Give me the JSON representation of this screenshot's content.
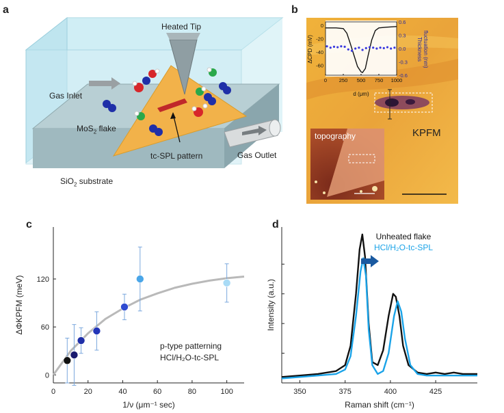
{
  "panels": {
    "a": {
      "letter": "a",
      "heated_tip": "Heated Tip",
      "gas_inlet": "Gas Inlet",
      "mos2_flake": "MoS",
      "mos2_sub": "2",
      "mos2_suffix": " flake",
      "tc_spl_pattern": "tc-SPL pattern",
      "gas_outlet": "Gas Outlet",
      "sio2": "SiO",
      "sio2_sub": "2",
      "sio2_suffix": " substrate"
    },
    "b": {
      "letter": "b",
      "kpfm": "KPFM",
      "topography": "topography",
      "inset_ylabel": "ΔCPD (mV)",
      "inset_y2label_1": "Thickness",
      "inset_y2label_2": "fluctuation (nm)",
      "inset_xlabel": "d (μm)",
      "inset_xticks": [
        "0",
        "250",
        "500",
        "750",
        "1000"
      ],
      "inset_yticks": [
        "0",
        "-20",
        "-40",
        "-60"
      ],
      "inset_y2ticks": [
        "0.6",
        "0.3",
        "0.0",
        "-0.3",
        "-0.6"
      ]
    },
    "c": {
      "letter": "c"
    },
    "d": {
      "letter": "d"
    }
  },
  "chart_data": [
    {
      "panel": "b-inset",
      "type": "line",
      "xlabel": "d (μm)",
      "ylabel": "ΔCPD (mV)",
      "y2label": "Thickness fluctuation (nm)",
      "xlim": [
        0,
        1000
      ],
      "ylim": [
        -75,
        5
      ],
      "y2lim": [
        -0.6,
        0.6
      ],
      "series": [
        {
          "name": "ΔCPD",
          "x": [
            0,
            150,
            250,
            300,
            350,
            400,
            450,
            500,
            520,
            560,
            600,
            650,
            700,
            750,
            850,
            1000
          ],
          "y": [
            -4,
            -4,
            -5,
            -12,
            -28,
            -45,
            -62,
            -70,
            -71,
            -65,
            -45,
            -22,
            -8,
            -4,
            -3,
            -2
          ]
        },
        {
          "name": "Thickness fluctuation",
          "axis": "y2",
          "x": [
            20,
            70,
            120,
            170,
            220,
            270,
            320,
            370,
            420,
            470,
            520,
            570,
            620,
            670,
            720,
            770,
            820,
            870,
            920,
            970
          ],
          "y": [
            0.05,
            0.02,
            0.04,
            0.03,
            0.05,
            0.04,
            -0.02,
            -0.05,
            0.0,
            0.02,
            -0.03,
            0.01,
            0.03,
            0.02,
            0.0,
            0.02,
            0.01,
            0.03,
            0.0,
            0.02
          ]
        }
      ]
    },
    {
      "panel": "c",
      "type": "scatter",
      "xlabel": "1/ν (μm⁻¹ sec)",
      "ylabel": "ΔΦKPFM (meV)",
      "xlim": [
        0,
        110
      ],
      "ylim": [
        -10,
        185
      ],
      "xticks": [
        0,
        20,
        40,
        60,
        80,
        100
      ],
      "yticks": [
        0,
        60,
        120
      ],
      "annotation_1": "p-type patterning",
      "annotation_2": "HCl/H₂O-tc-SPL",
      "points": [
        {
          "x": 8,
          "y": 18,
          "err": 28,
          "color": "#111111"
        },
        {
          "x": 12,
          "y": 25,
          "err": 38,
          "color": "#1a1a6e"
        },
        {
          "x": 16,
          "y": 43,
          "err": 16,
          "color": "#1f2fa8"
        },
        {
          "x": 25,
          "y": 55,
          "err": 24,
          "color": "#2336b8"
        },
        {
          "x": 41,
          "y": 85,
          "err": 16,
          "color": "#2f4bd1"
        },
        {
          "x": 50,
          "y": 120,
          "err": 40,
          "color": "#4aa6e8"
        },
        {
          "x": 100,
          "y": 115,
          "err": 24,
          "color": "#a9dbf6"
        }
      ],
      "fit": {
        "label": "fit",
        "x": [
          0,
          10,
          20,
          30,
          40,
          50,
          60,
          70,
          80,
          90,
          100,
          110
        ],
        "y": [
          0,
          30,
          52,
          70,
          83,
          94,
          102,
          109,
          114,
          118,
          121,
          123
        ]
      }
    },
    {
      "panel": "d",
      "type": "line",
      "xlabel": "Raman shift (cm⁻¹)",
      "ylabel": "Intensity (a.u.)",
      "xlim": [
        340,
        448
      ],
      "xticks": [
        350,
        375,
        400,
        425
      ],
      "ylim": [
        0,
        1.05
      ],
      "legend": [
        "Unheated flake",
        "HCl/H₂O-tc-SPL"
      ],
      "series": [
        {
          "name": "Unheated flake",
          "color": "#111111",
          "x": [
            340,
            350,
            360,
            370,
            375,
            378,
            381,
            383,
            384.5,
            386,
            388,
            390,
            393,
            396,
            399,
            401.5,
            403,
            405,
            407,
            410,
            415,
            420,
            425,
            430,
            435,
            440,
            448
          ],
          "y": [
            0.04,
            0.05,
            0.06,
            0.08,
            0.12,
            0.25,
            0.6,
            0.9,
            1.0,
            0.85,
            0.4,
            0.14,
            0.12,
            0.22,
            0.45,
            0.6,
            0.58,
            0.45,
            0.25,
            0.12,
            0.07,
            0.06,
            0.07,
            0.06,
            0.07,
            0.06,
            0.06
          ]
        },
        {
          "name": "HCl/H₂O-tc-SPL",
          "color": "#1aa3e8",
          "x": [
            340,
            350,
            360,
            370,
            375,
            378,
            381,
            383.5,
            385,
            386.5,
            388,
            390,
            393,
            396,
            399,
            402,
            404,
            406,
            408,
            411,
            415,
            420,
            425,
            430,
            435,
            440,
            448
          ],
          "y": [
            0.03,
            0.04,
            0.05,
            0.06,
            0.09,
            0.18,
            0.45,
            0.75,
            0.84,
            0.72,
            0.36,
            0.12,
            0.06,
            0.08,
            0.2,
            0.45,
            0.55,
            0.48,
            0.3,
            0.12,
            0.06,
            0.05,
            0.05,
            0.05,
            0.05,
            0.05,
            0.05
          ]
        }
      ]
    }
  ]
}
